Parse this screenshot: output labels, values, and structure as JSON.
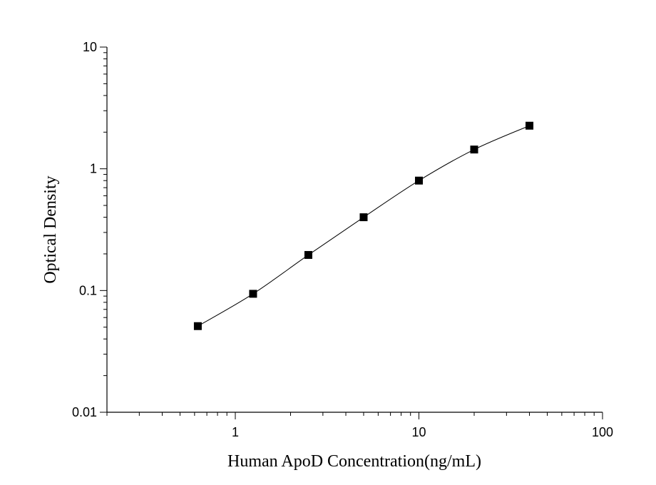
{
  "chart_data": {
    "type": "scatter",
    "title": "",
    "xlabel": "Human ApoD Concentration(ng/mL)",
    "ylabel": "Optical Density",
    "xscale": "log",
    "yscale": "log",
    "xlim": [
      0.2,
      100
    ],
    "ylim": [
      0.01,
      10
    ],
    "x_tick_labels": [
      "1",
      "10",
      "100"
    ],
    "y_tick_labels": [
      "0.01",
      "0.1",
      "1",
      "10"
    ],
    "grid": false,
    "legend": "none",
    "series": [
      {
        "x": [
          0.625,
          1.25,
          2.5,
          5,
          10,
          20,
          40
        ],
        "y": [
          0.051,
          0.094,
          0.196,
          0.4,
          0.8,
          1.44,
          2.26
        ],
        "marker": "square",
        "fit_curve": true
      }
    ]
  }
}
